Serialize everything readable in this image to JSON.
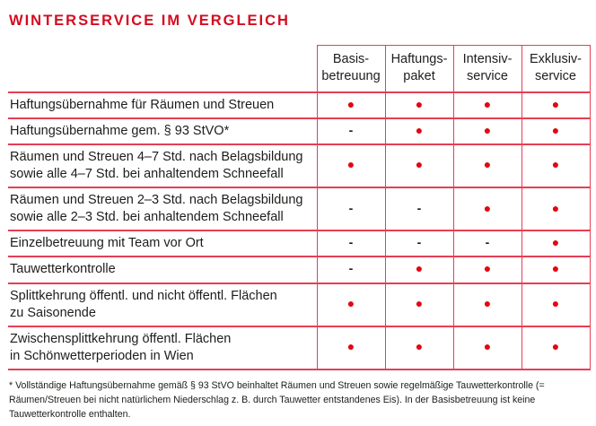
{
  "title": "WINTERSERVICE IM VERGLEICH",
  "symbols": {
    "dot": "●",
    "dash": "-"
  },
  "colors": {
    "title_red": "#d40c20",
    "grid_line_red": "#e63e55",
    "dot_red": "#e30613",
    "text": "#1d1d1b"
  },
  "table": {
    "columns": [
      "Basis-\nbetreuung",
      "Haftungs-\npaket",
      "Intensiv-\nservice",
      "Exklusiv-\nservice"
    ],
    "rows": [
      {
        "label": "Haftungsübernahme für Räumen und Streuen",
        "values": [
          "dot",
          "dot",
          "dot",
          "dot"
        ]
      },
      {
        "label": "Haftungsübernahme gem. § 93 StVO*",
        "values": [
          "dash",
          "dot",
          "dot",
          "dot"
        ]
      },
      {
        "label": "Räumen und Streuen 4–7 Std. nach Belagsbildung\nsowie alle 4–7 Std. bei anhaltendem Schneefall",
        "values": [
          "dot",
          "dot",
          "dot",
          "dot"
        ]
      },
      {
        "label": "Räumen und Streuen 2–3 Std. nach Belagsbildung\nsowie alle 2–3 Std. bei anhaltendem Schneefall",
        "values": [
          "dash",
          "dash",
          "dot",
          "dot"
        ]
      },
      {
        "label": "Einzelbetreuung mit Team vor Ort",
        "values": [
          "dash",
          "dash",
          "dash",
          "dot"
        ]
      },
      {
        "label": "Tauwetterkontrolle",
        "values": [
          "dash",
          "dot",
          "dot",
          "dot"
        ]
      },
      {
        "label": "Splittkehrung öffentl. und nicht öffentl. Flächen\nzu Saisonende",
        "values": [
          "dot",
          "dot",
          "dot",
          "dot"
        ]
      },
      {
        "label": "Zwischensplittkehrung öffentl. Flächen\nin Schönwetterperioden in Wien",
        "values": [
          "dot",
          "dot",
          "dot",
          "dot"
        ]
      }
    ]
  },
  "footnote": "* Vollständige Haftungsübernahme gemäß § 93 StVO beinhaltet Räumen und Streuen sowie regelmäßige Tauwetterkontrolle (= Räumen/Streuen bei nicht natürlichem Niederschlag z. B. durch Tauwetter entstandenes Eis). In der Basisbetreuung ist keine Tauwetterkontrolle enthalten.",
  "chart_data": {
    "type": "table",
    "title": "WINTERSERVICE IM VERGLEICH",
    "columns": [
      "Basisbetreuung",
      "Haftungspaket",
      "Intensivservice",
      "Exklusivservice"
    ],
    "row_labels": [
      "Haftungsübernahme für Räumen und Streuen",
      "Haftungsübernahme gem. § 93 StVO*",
      "Räumen und Streuen 4–7 Std. nach Belagsbildung sowie alle 4–7 Std. bei anhaltendem Schneefall",
      "Räumen und Streuen 2–3 Std. nach Belagsbildung sowie alle 2–3 Std. bei anhaltendem Schneefall",
      "Einzelbetreuung mit Team vor Ort",
      "Tauwetterkontrolle",
      "Splittkehrung öffentl. und nicht öffentl. Flächen zu Saisonende",
      "Zwischensplittkehrung öffentl. Flächen in Schönwetterperioden in Wien"
    ],
    "matrix": [
      [
        true,
        true,
        true,
        true
      ],
      [
        false,
        true,
        true,
        true
      ],
      [
        true,
        true,
        true,
        true
      ],
      [
        false,
        false,
        true,
        true
      ],
      [
        false,
        false,
        false,
        true
      ],
      [
        false,
        true,
        true,
        true
      ],
      [
        true,
        true,
        true,
        true
      ],
      [
        true,
        true,
        true,
        true
      ]
    ],
    "legend": {
      "included": "red dot",
      "not_included": "dash"
    }
  }
}
